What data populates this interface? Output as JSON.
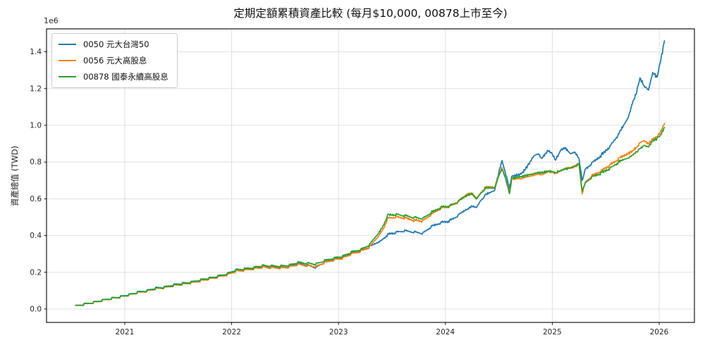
{
  "title": "定期定額累積資產比較 (每月$10,000, 00878上市至今)",
  "axes": {
    "ylabel": "資產總值 (TWD)",
    "offset_text": "1e6",
    "grid": true,
    "xlim": [
      2020.268,
      2026.33
    ],
    "ylim_twd": [
      -73000,
      1525000
    ],
    "xticks": [
      {
        "value": 2021,
        "label": "2021"
      },
      {
        "value": 2022,
        "label": "2022"
      },
      {
        "value": 2023,
        "label": "2023"
      },
      {
        "value": 2024,
        "label": "2024"
      },
      {
        "value": 2025,
        "label": "2025"
      },
      {
        "value": 2026,
        "label": "2026"
      }
    ],
    "yticks": [
      {
        "value_twd": 0,
        "label": "0.0"
      },
      {
        "value_twd": 200000,
        "label": "0.2"
      },
      {
        "value_twd": 400000,
        "label": "0.4"
      },
      {
        "value_twd": 600000,
        "label": "0.6"
      },
      {
        "value_twd": 800000,
        "label": "0.8"
      },
      {
        "value_twd": 1000000,
        "label": "1.0"
      },
      {
        "value_twd": 1200000,
        "label": "1.2"
      },
      {
        "value_twd": 1400000,
        "label": "1.4"
      }
    ]
  },
  "legend": {
    "position": "upper-left"
  },
  "chart_data": {
    "type": "line",
    "monthly_contribution_twd": 10000,
    "x_years": [
      2020.54,
      2020.62,
      2020.71,
      2020.79,
      2020.88,
      2020.96,
      2021.04,
      2021.12,
      2021.21,
      2021.29,
      2021.37,
      2021.46,
      2021.54,
      2021.62,
      2021.71,
      2021.79,
      2021.87,
      2021.96,
      2022.04,
      2022.12,
      2022.21,
      2022.29,
      2022.37,
      2022.46,
      2022.54,
      2022.62,
      2022.71,
      2022.79,
      2022.87,
      2022.96,
      2023.04,
      2023.12,
      2023.21,
      2023.29,
      2023.37,
      2023.42,
      2023.46,
      2023.54,
      2023.62,
      2023.71,
      2023.79,
      2023.87,
      2023.96,
      2024.04,
      2024.12,
      2024.21,
      2024.25,
      2024.29,
      2024.33,
      2024.37,
      2024.46,
      2024.5,
      2024.53,
      2024.56,
      2024.6,
      2024.62,
      2024.71,
      2024.75,
      2024.79,
      2024.83,
      2024.87,
      2024.9,
      2024.96,
      2025.0,
      2025.03,
      2025.08,
      2025.12,
      2025.17,
      2025.21,
      2025.25,
      2025.28,
      2025.31,
      2025.37,
      2025.46,
      2025.54,
      2025.62,
      2025.71,
      2025.75,
      2025.79,
      2025.82,
      2025.86,
      2025.9,
      2025.94,
      2025.98,
      2026.01,
      2026.05
    ],
    "series": [
      {
        "name": "0050 元大台灣50",
        "color": "#1f77b4",
        "values_twd": [
          10000,
          20500,
          31000,
          41500,
          53000,
          61000,
          73000,
          86000,
          95000,
          109000,
          113000,
          127000,
          134000,
          141000,
          153000,
          163000,
          172000,
          187000,
          207000,
          213000,
          219000,
          230000,
          224000,
          221000,
          226000,
          243000,
          232000,
          221000,
          251000,
          266000,
          276000,
          298000,
          313000,
          333000,
          362000,
          382000,
          400000,
          412000,
          420000,
          413000,
          407000,
          444000,
          465000,
          474000,
          504000,
          546000,
          560000,
          552000,
          590000,
          612000,
          645000,
          745000,
          808000,
          745000,
          658000,
          712000,
          735000,
          762000,
          800000,
          835000,
          845000,
          820000,
          862000,
          845000,
          810000,
          865000,
          878000,
          845000,
          855000,
          820000,
          700000,
          762000,
          788000,
          832000,
          880000,
          945000,
          1040000,
          1120000,
          1180000,
          1258000,
          1215000,
          1192000,
          1288000,
          1262000,
          1340000,
          1460000
        ]
      },
      {
        "name": "0056 元大高股息",
        "color": "#ff7f0e",
        "values_twd": [
          10000,
          20000,
          30500,
          41000,
          52000,
          60000,
          71000,
          83000,
          92000,
          105000,
          110000,
          122000,
          129000,
          137000,
          148000,
          158000,
          168000,
          182000,
          200000,
          206000,
          213000,
          222000,
          219000,
          218000,
          223000,
          237000,
          230000,
          226000,
          247000,
          262000,
          272000,
          294000,
          309000,
          331000,
          392000,
          438000,
          488000,
          495000,
          490000,
          477000,
          474000,
          510000,
          545000,
          552000,
          578000,
          628000,
          630000,
          600000,
          632000,
          655000,
          662000,
          730000,
          770000,
          715000,
          636000,
          698000,
          710000,
          718000,
          724000,
          730000,
          736000,
          730000,
          748000,
          745000,
          738000,
          752000,
          765000,
          770000,
          775000,
          788000,
          627000,
          692000,
          718000,
          748000,
          778000,
          812000,
          845000,
          862000,
          880000,
          905000,
          918000,
          898000,
          925000,
          938000,
          962000,
          1010000
        ]
      },
      {
        "name": "00878 國泰永續高股息",
        "color": "#2ca02c",
        "values_twd": [
          10000,
          20500,
          31000,
          42000,
          53000,
          61000,
          72000,
          85000,
          94000,
          107000,
          112000,
          125000,
          132000,
          140000,
          152000,
          162000,
          172000,
          186000,
          206000,
          212000,
          220000,
          231000,
          229000,
          228000,
          233000,
          248000,
          243000,
          239000,
          258000,
          272000,
          282000,
          304000,
          319000,
          344000,
          408000,
          455000,
          505000,
          509000,
          503000,
          492000,
          487000,
          520000,
          549000,
          556000,
          580000,
          620000,
          628000,
          598000,
          630000,
          650000,
          658000,
          725000,
          760000,
          715000,
          628000,
          702000,
          722000,
          726000,
          731000,
          738000,
          743000,
          740000,
          752000,
          748000,
          742000,
          755000,
          762000,
          768000,
          775000,
          792000,
          641000,
          690000,
          712000,
          736000,
          760000,
          793000,
          822000,
          838000,
          856000,
          872000,
          890000,
          882000,
          915000,
          928000,
          945000,
          988000
        ]
      }
    ]
  }
}
